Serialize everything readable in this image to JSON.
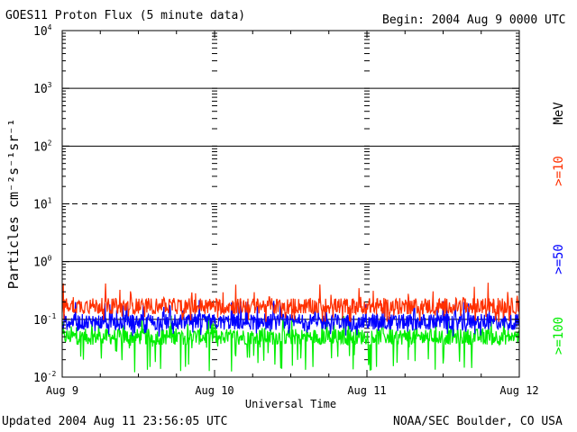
{
  "header": {
    "title": "GOES11 Proton Flux (5 minute data)",
    "begin": "Begin: 2004 Aug 9 0000 UTC"
  },
  "footer": {
    "updated": "Updated 2004 Aug 11 23:56:05 UTC",
    "credit": "NOAA/SEC Boulder, CO USA"
  },
  "chart_data": {
    "type": "line",
    "title": "GOES11 Proton Flux (5 minute data)",
    "xlabel": "Universal Time",
    "ylabel": "Particles cm⁻²s⁻¹sr⁻¹",
    "yscale": "log",
    "ylim": [
      0.01,
      10000
    ],
    "xlim": [
      "2004-08-09",
      "2004-08-12"
    ],
    "x_ticks": [
      "Aug 9",
      "Aug 10",
      "Aug 11",
      "Aug 12"
    ],
    "y_ticks": [
      {
        "value": 0.01,
        "base": "10",
        "exp": "-2"
      },
      {
        "value": 0.1,
        "base": "10",
        "exp": "-1"
      },
      {
        "value": 1,
        "base": "10",
        "exp": "0"
      },
      {
        "value": 10,
        "base": "10",
        "exp": "1"
      },
      {
        "value": 100,
        "base": "10",
        "exp": "2"
      },
      {
        "value": 1000,
        "base": "10",
        "exp": "3"
      },
      {
        "value": 10000,
        "base": "10",
        "exp": "4"
      }
    ],
    "reference_lines": [
      {
        "y": 1,
        "style": "solid"
      },
      {
        "y": 10,
        "style": "dashed"
      },
      {
        "y": 100,
        "style": "solid"
      },
      {
        "y": 1000,
        "style": "solid"
      },
      {
        "y": 0.1,
        "style": "solid"
      }
    ],
    "legend_unit": "MeV",
    "legend_position": "right",
    "series": [
      {
        "name": ">=10",
        "color": "#ff3000",
        "typical": 0.17,
        "min": 0.09,
        "max": 0.45
      },
      {
        "name": ">=50",
        "color": "#0000ff",
        "typical": 0.09,
        "min": 0.05,
        "max": 0.22
      },
      {
        "name": ">=100",
        "color": "#00ee00",
        "typical": 0.05,
        "min": 0.012,
        "max": 0.12
      }
    ]
  }
}
